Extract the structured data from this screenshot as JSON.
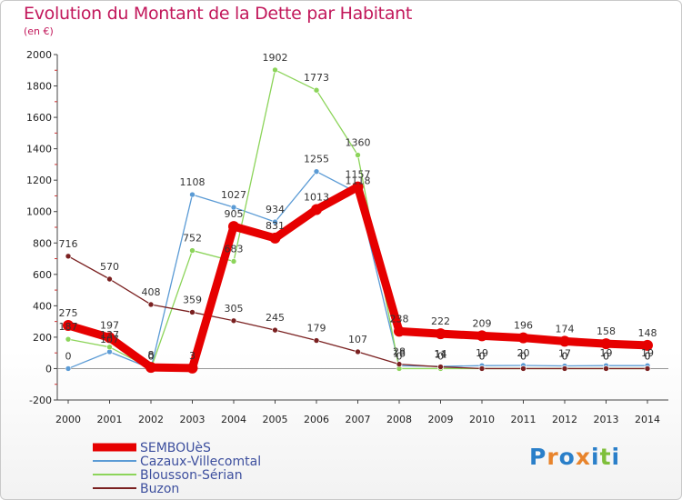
{
  "title": "Evolution du Montant de la Dette par Habitant",
  "subtitle": "(en €)",
  "logo_text": "Proxiti",
  "chart_data": {
    "type": "line",
    "x": [
      "2000",
      "2001",
      "2002",
      "2003",
      "2004",
      "2005",
      "2006",
      "2007",
      "2008",
      "2009",
      "2010",
      "2011",
      "2012",
      "2013",
      "2014"
    ],
    "ylim": [
      -200,
      2000
    ],
    "yticks": [
      "-200",
      "0",
      "200",
      "400",
      "600",
      "800",
      "1000",
      "1200",
      "1400",
      "1600",
      "1800",
      "2000"
    ],
    "grid": false,
    "legend_position": "bottom-left",
    "series": [
      {
        "name": "SEMBOUèS",
        "color": "#e60000",
        "width": 9,
        "marker": 6,
        "values": [
          275,
          197,
          8,
          3,
          905,
          831,
          1013,
          1157,
          238,
          222,
          209,
          196,
          174,
          158,
          148
        ],
        "labels": [
          "275",
          "197",
          "8",
          "3",
          "905",
          "831",
          "1013",
          "1157",
          "238",
          "222",
          "209",
          "196",
          "174",
          "158",
          "148"
        ]
      },
      {
        "name": "Cazaux-Villecomtal",
        "color": "#5b9bd5",
        "width": 1.3,
        "marker": 3,
        "values": [
          0,
          107,
          0,
          1108,
          1027,
          934,
          1255,
          1118,
          18,
          14,
          19,
          20,
          17,
          19,
          19
        ],
        "labels": [
          "0",
          "107",
          "0",
          "1108",
          "1027",
          "934",
          "1255",
          "1118",
          "18",
          "14",
          "19",
          "20",
          "17",
          "19",
          "19"
        ]
      },
      {
        "name": "Blousson-Sérian",
        "color": "#8cd45a",
        "width": 1.3,
        "marker": 3,
        "values": [
          187,
          137,
          0,
          752,
          683,
          1902,
          1773,
          1360,
          0,
          0,
          0,
          0,
          0,
          0,
          0
        ],
        "labels": [
          "187",
          "137",
          "0",
          "752",
          "683",
          "1902",
          "1773",
          "1360",
          "0",
          "0",
          "0",
          "0",
          "0",
          "0",
          "0"
        ]
      },
      {
        "name": "Buzon",
        "color": "#7a2020",
        "width": 1.3,
        "marker": 3,
        "values": [
          716,
          570,
          408,
          359,
          305,
          245,
          179,
          107,
          28,
          11,
          0,
          0,
          0,
          0,
          0
        ],
        "labels": [
          "716",
          "570",
          "408",
          "359",
          "305",
          "245",
          "179",
          "107",
          "28",
          "11",
          "0",
          "0",
          "0",
          "0",
          "0"
        ]
      }
    ]
  }
}
